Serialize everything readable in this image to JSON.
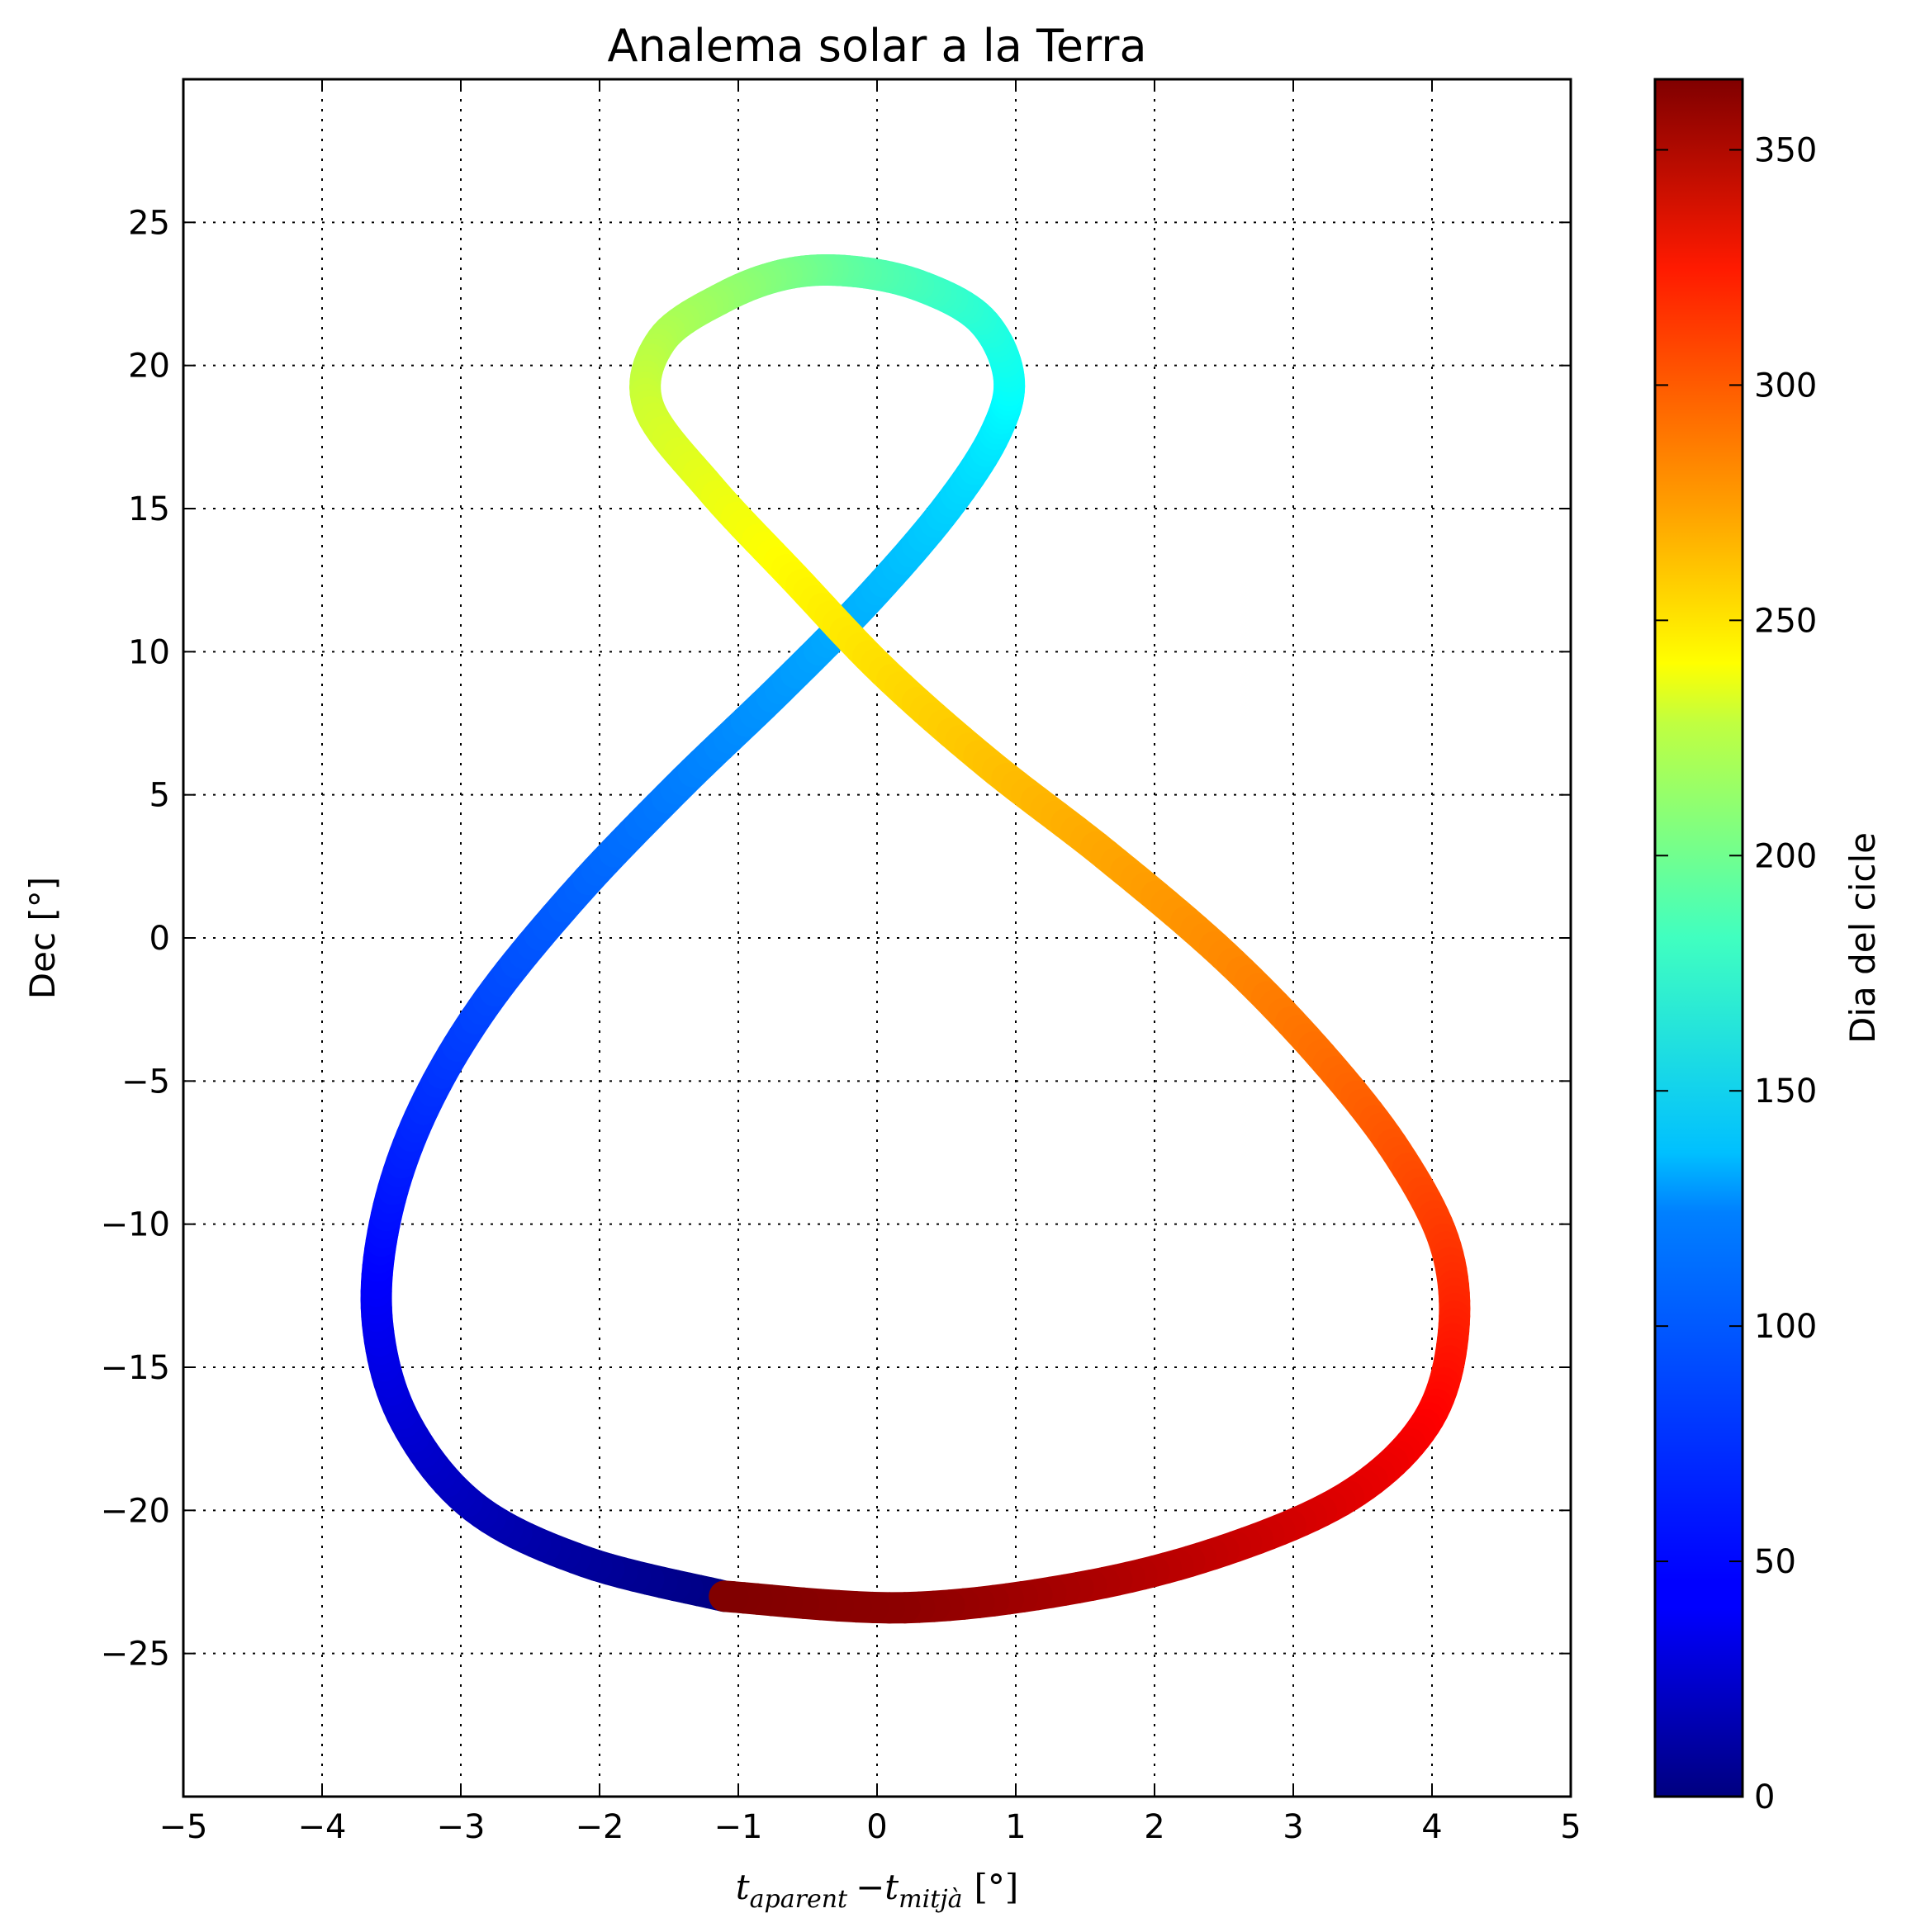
{
  "chart_data": {
    "type": "line",
    "title": "Analema solar a la Terra",
    "xlabel": {
      "t1": "t",
      "sub1": "aparent",
      "minus": "−",
      "t2": "t",
      "sub2": "mitjà",
      "unit": "[°]"
    },
    "ylabel": "Dec [°]",
    "xlim": [
      -5,
      5
    ],
    "ylim": [
      -30,
      30
    ],
    "x_ticks": [
      -5,
      -4,
      -3,
      -2,
      -1,
      0,
      1,
      2,
      3,
      4,
      5
    ],
    "x_tick_labels": [
      "−5",
      "−4",
      "−3",
      "−2",
      "−1",
      "0",
      "1",
      "2",
      "3",
      "4",
      "5"
    ],
    "y_ticks": [
      -25,
      -20,
      -15,
      -10,
      -5,
      0,
      5,
      10,
      15,
      20,
      25
    ],
    "y_tick_labels": [
      "−25",
      "−20",
      "−15",
      "−10",
      "−5",
      "0",
      "5",
      "10",
      "15",
      "20",
      "25"
    ],
    "grid": true,
    "colorbar": {
      "label": "Dia del cicle",
      "range": [
        0,
        365
      ],
      "ticks": [
        0,
        50,
        100,
        150,
        200,
        250,
        300,
        350
      ],
      "tick_labels": [
        "0",
        "50",
        "100",
        "150",
        "200",
        "250",
        "300",
        "350"
      ],
      "colormap": "jet"
    },
    "series": [
      {
        "day": [
          0,
          10,
          20,
          30,
          40,
          50,
          60,
          70,
          80,
          90,
          100,
          110,
          120,
          130,
          140,
          150,
          160,
          170,
          180,
          190,
          200,
          210,
          220,
          230,
          240,
          250,
          260,
          270,
          280,
          290,
          300,
          310,
          320,
          330,
          340,
          350,
          360,
          365
        ],
        "x": [
          -1.1,
          -2.1,
          -2.9,
          -3.4,
          -3.6,
          -3.55,
          -3.3,
          -2.85,
          -2.2,
          -1.45,
          -0.7,
          -0.05,
          0.5,
          0.85,
          0.95,
          0.75,
          0.3,
          -0.2,
          -0.65,
          -1.1,
          -1.55,
          -1.65,
          -1.2,
          -0.6,
          0.05,
          0.8,
          1.65,
          2.5,
          3.2,
          3.75,
          4.1,
          4.15,
          3.95,
          3.4,
          2.5,
          1.45,
          0.2,
          -1.1
        ],
        "y": [
          -23.0,
          -21.8,
          -19.9,
          -16.9,
          -13.5,
          -10.0,
          -6.3,
          -2.5,
          1.4,
          5.2,
          8.7,
          11.9,
          15.0,
          17.6,
          19.6,
          21.6,
          22.8,
          23.3,
          23.2,
          22.4,
          20.9,
          18.6,
          15.7,
          12.6,
          9.3,
          6.1,
          2.9,
          -0.6,
          -4.1,
          -7.5,
          -10.8,
          -14.0,
          -17.0,
          -19.5,
          -21.4,
          -22.7,
          -23.4,
          -23.0
        ]
      }
    ]
  }
}
